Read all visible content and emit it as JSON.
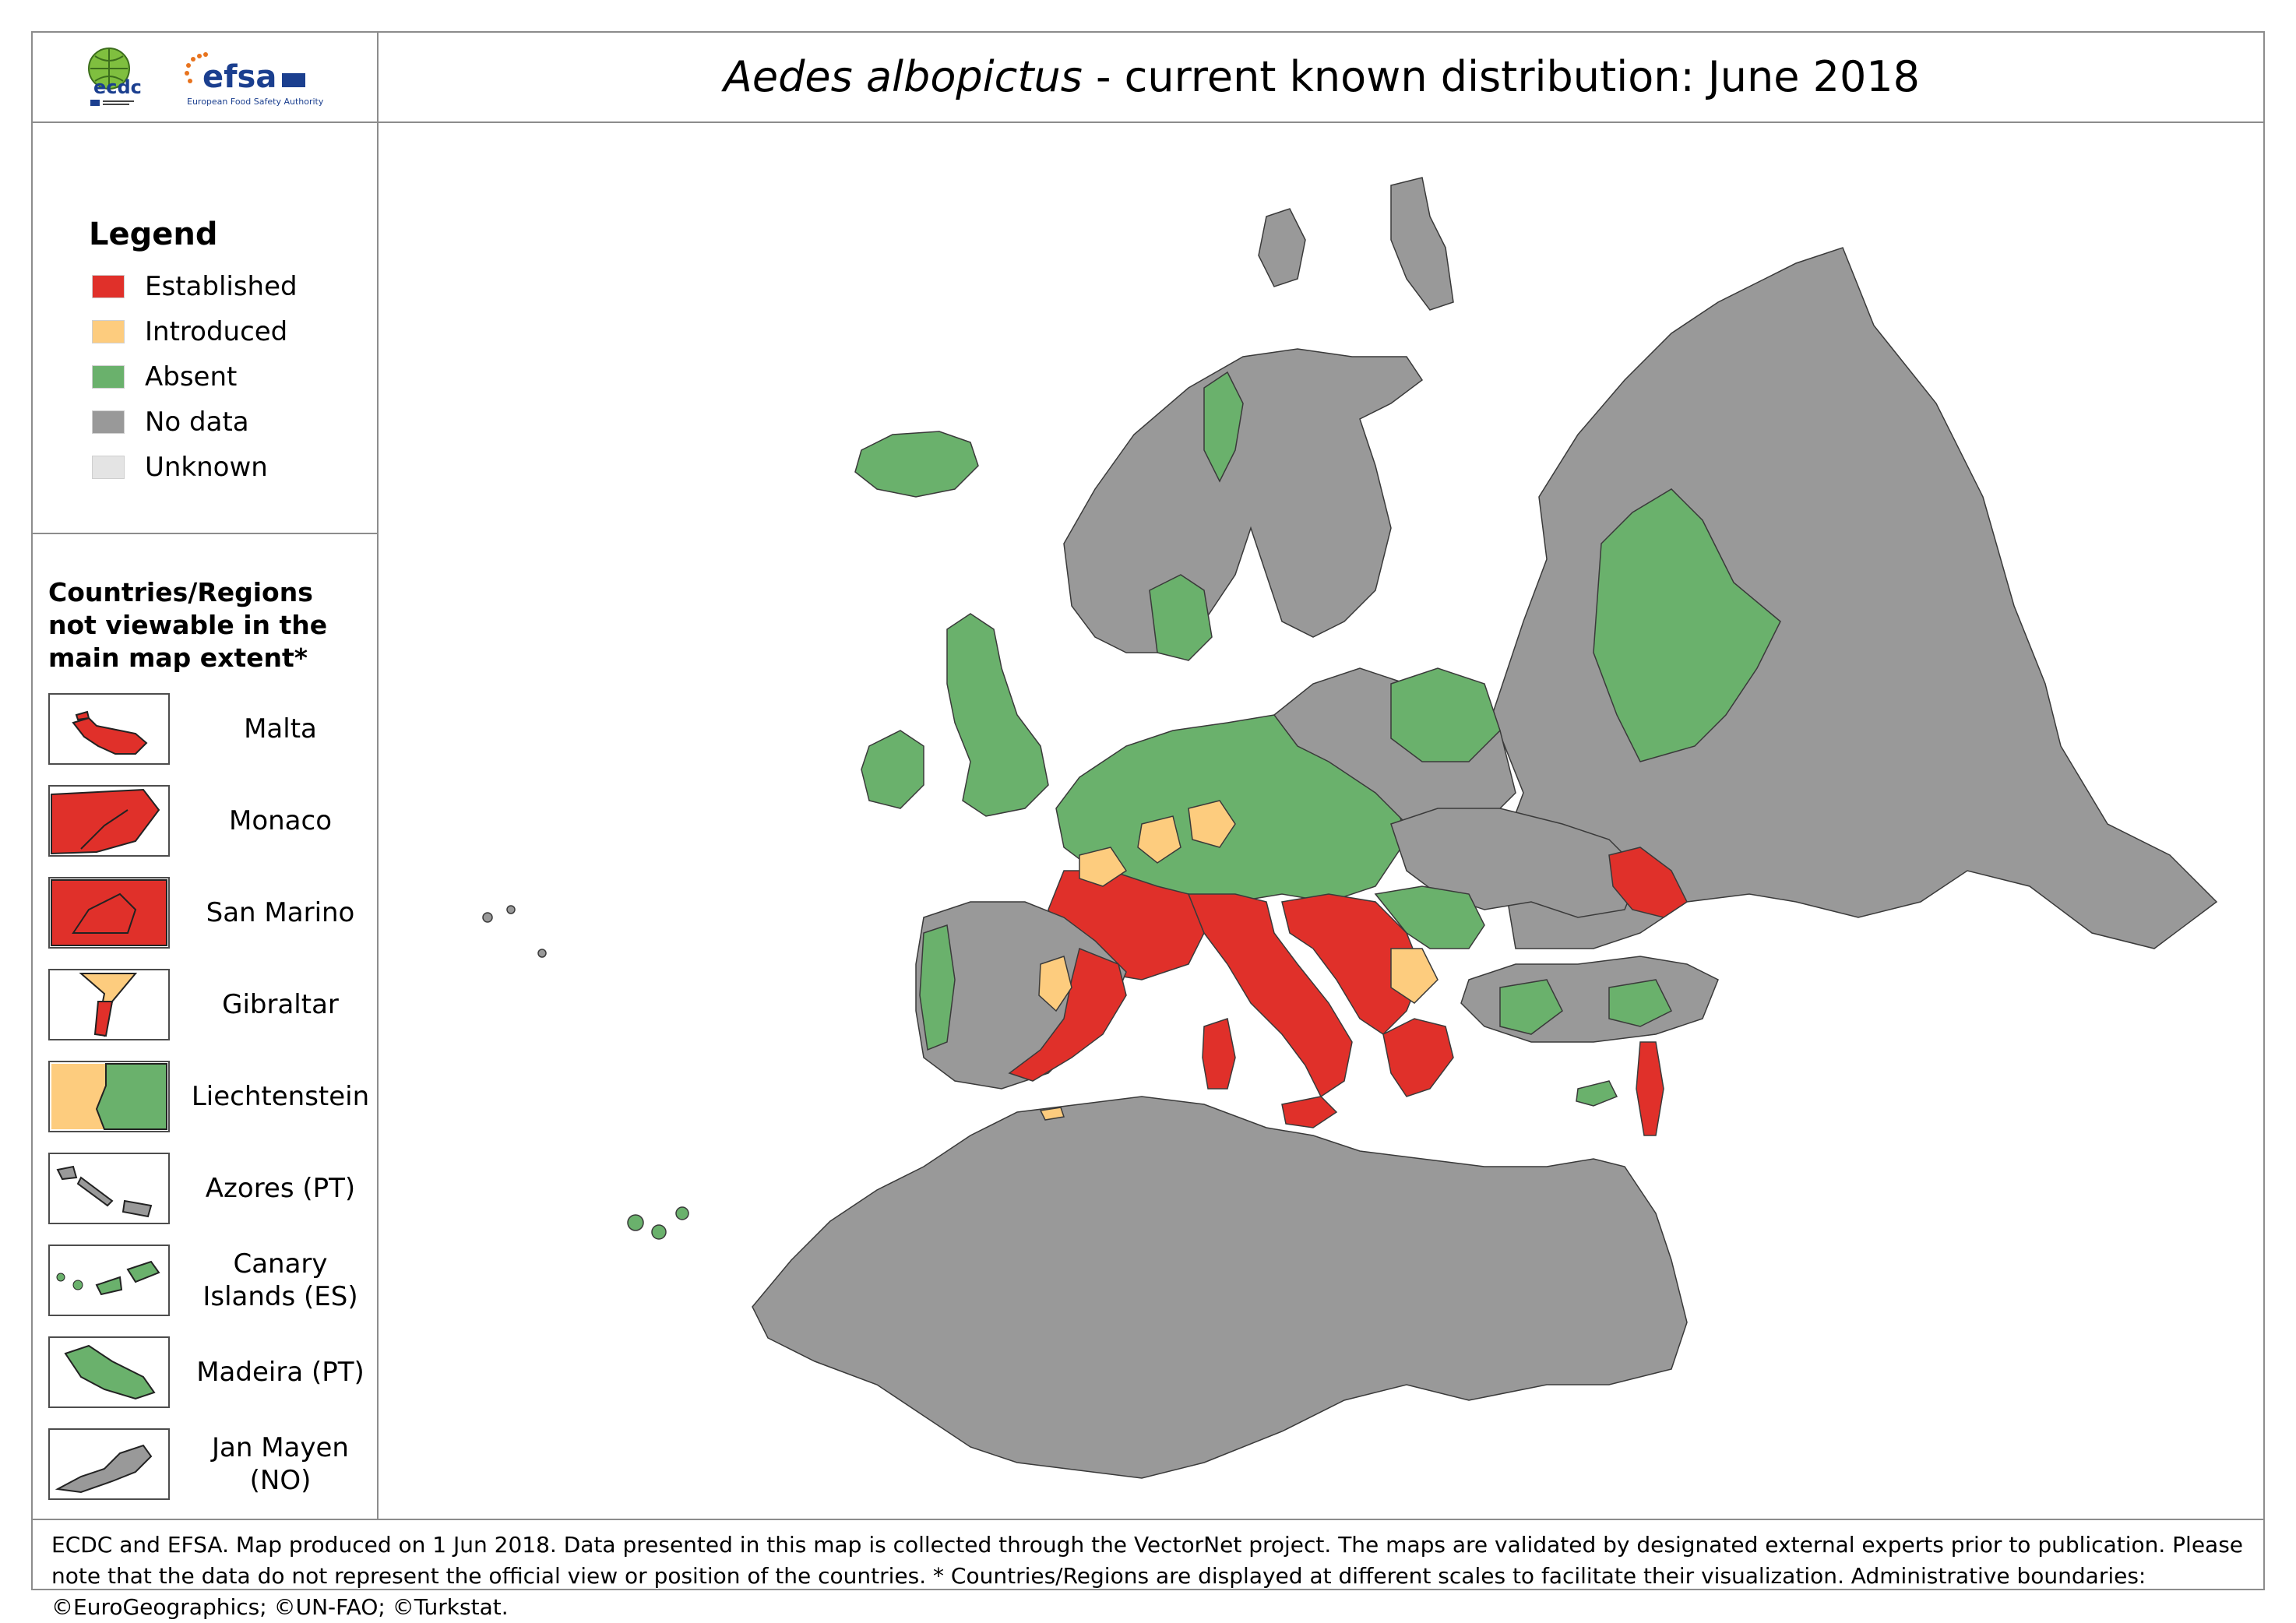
{
  "title": {
    "italic": "Aedes albopictus",
    "rest": " - current known distribution: June 2018"
  },
  "logos": {
    "ecdc": {
      "text": "ecdc",
      "small": "EUROPEAN CENTRE FOR DISEASE PREVENTION AND CONTROL"
    },
    "efsa": {
      "text": "efsa",
      "subtitle": "European Food Safety Authority"
    }
  },
  "legend": {
    "title": "Legend",
    "items": [
      {
        "label": "Established",
        "color": "#e0302a"
      },
      {
        "label": "Introduced",
        "color": "#fdcc7e"
      },
      {
        "label": "Absent",
        "color": "#6ab16c"
      },
      {
        "label": "No data",
        "color": "#999999"
      },
      {
        "label": "Unknown",
        "color": "#e4e4e4"
      }
    ]
  },
  "insets": {
    "heading": "Countries/Regions not viewable in the main map extent*",
    "items": [
      {
        "label": "Malta",
        "icon": "malta-shape",
        "color": "#e0302a"
      },
      {
        "label": "Monaco",
        "icon": "monaco-shape",
        "color": "#e0302a"
      },
      {
        "label": "San Marino",
        "icon": "san-marino-shape",
        "color": "#e0302a"
      },
      {
        "label": "Gibraltar",
        "icon": "gibraltar-shape",
        "color": "#e0302a"
      },
      {
        "label": "Liechtenstein",
        "icon": "liechtenstein-shape",
        "color": "#6ab16c"
      },
      {
        "label": "Azores (PT)",
        "icon": "azores-shape",
        "color": "#999999"
      },
      {
        "label": "Canary Islands (ES)",
        "icon": "canary-islands-shape",
        "color": "#6ab16c"
      },
      {
        "label": "Madeira (PT)",
        "icon": "madeira-shape",
        "color": "#6ab16c"
      },
      {
        "label": "Jan Mayen (NO)",
        "icon": "jan-mayen-shape",
        "color": "#999999"
      }
    ]
  },
  "footer": {
    "text": "ECDC and EFSA. Map produced on 1 Jun 2018. Data presented in this map is collected through the VectorNet project. The maps are validated by designated external experts prior to publication. Please note that the data do not represent the official view or position of the countries. * Countries/Regions are displayed at different scales to facilitate their visualization. Administrative boundaries: ©EuroGeographics; ©UN-FAO; ©Turkstat."
  }
}
